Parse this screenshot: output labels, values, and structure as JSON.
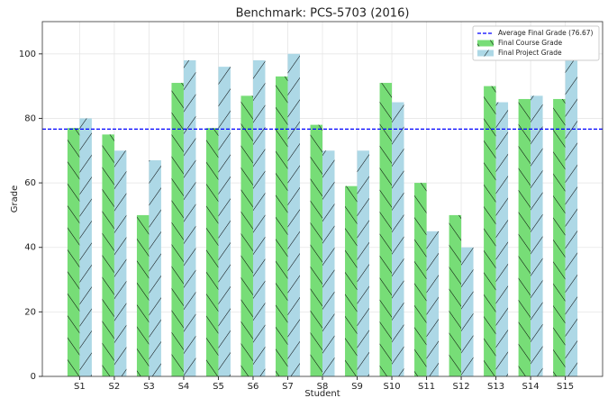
{
  "chart_data": {
    "type": "bar",
    "title": "Benchmark: PCS-5703 (2016)",
    "xlabel": "Student",
    "ylabel": "Grade",
    "categories": [
      "S1",
      "S2",
      "S3",
      "S4",
      "S5",
      "S6",
      "S7",
      "S8",
      "S9",
      "S10",
      "S11",
      "S12",
      "S13",
      "S14",
      "S15"
    ],
    "series": [
      {
        "name": "Final Course Grade",
        "color": "#77dd77",
        "hatch": "/",
        "values": [
          77,
          75,
          50,
          91,
          77,
          87,
          93,
          78,
          59,
          91,
          60,
          50,
          90,
          86,
          86
        ]
      },
      {
        "name": "Final Project Grade",
        "color": "#add8e6",
        "hatch": "\\",
        "values": [
          80,
          70,
          67,
          98,
          96,
          98,
          100,
          70,
          70,
          85,
          45,
          40,
          85,
          87,
          98
        ]
      }
    ],
    "reference_line": {
      "label": "Average Final Grade (76.67)",
      "value": 76.67,
      "color": "#0000ff"
    },
    "ylim": [
      0,
      110
    ],
    "yticks": [
      0,
      20,
      40,
      60,
      80,
      100
    ],
    "grid": true,
    "legend": "upper right"
  }
}
